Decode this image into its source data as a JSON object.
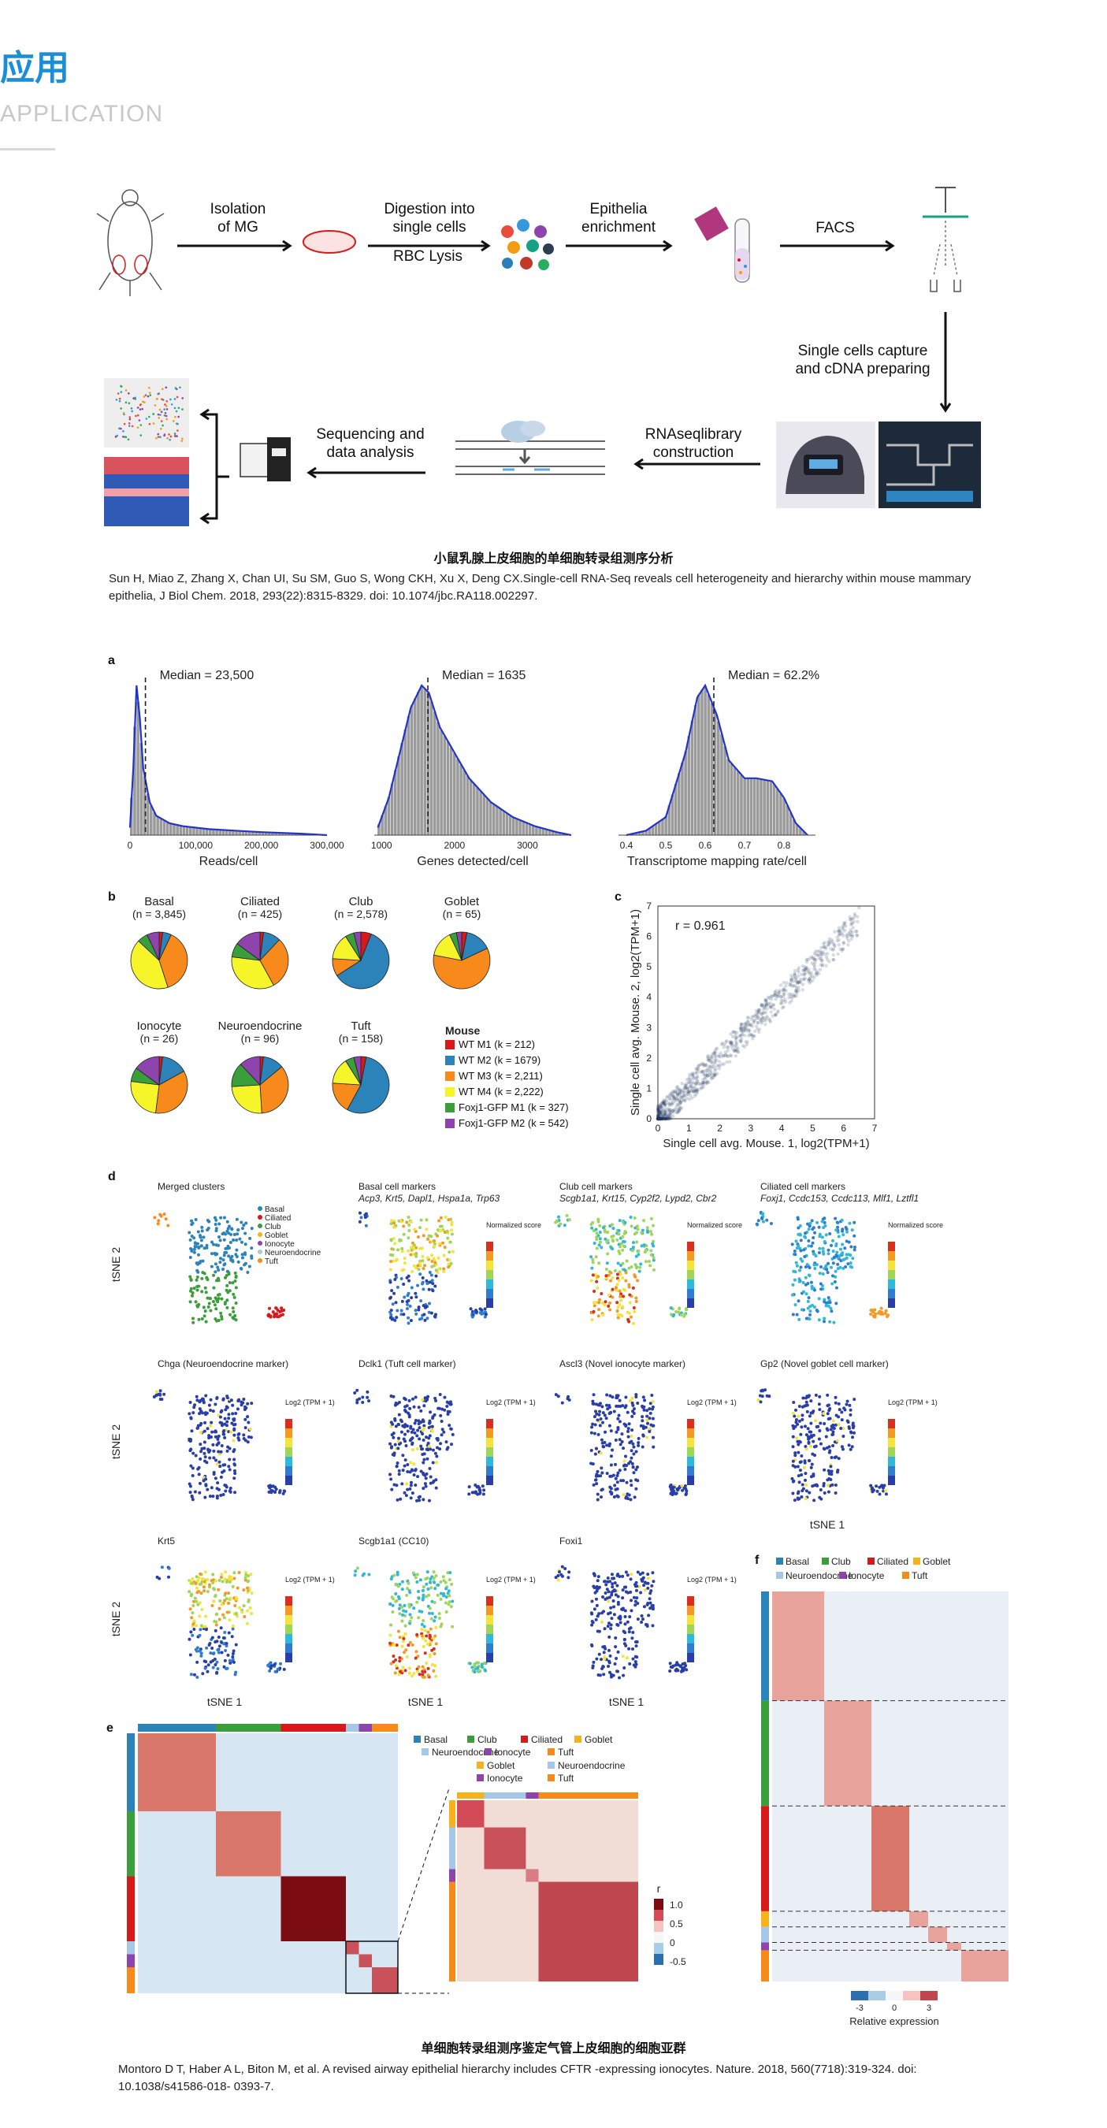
{
  "header": {
    "title_cn": "应用",
    "title_en": "APPLICATION"
  },
  "workflow": {
    "steps": {
      "isolation": "Isolation\nof MG",
      "digestion": "Digestion into\nsingle cells",
      "rbc": "RBC Lysis",
      "epithelia": "Epithelia\nenrichment",
      "facs": "FACS",
      "capture": "Single cells capture\nand cDNA preparing",
      "library": "RNAseqlibrary\nconstruction",
      "sequencing": "Sequencing and\ndata analysis"
    },
    "caption": "小鼠乳腺上皮细胞的单细胞转录组测序分析",
    "reference": "Sun H, Miao Z, Zhang X, Chan UI, Su SM, Guo S, Wong CKH, Xu X, Deng CX.Single-cell RNA-Seq reveals cell heterogeneity and hierarchy within mouse mammary epithelia, J Biol Chem. 2018, 293(22):8315-8329. doi: 10.1074/jbc.RA118.002297."
  },
  "figure": {
    "panel_labels": {
      "a": "a",
      "b": "b",
      "c": "c",
      "d": "d",
      "e": "e",
      "f": "f"
    },
    "mouse_legend": {
      "title": "Mouse",
      "items": [
        {
          "label": "WT M1 (k = 212)",
          "color": "#d7191c"
        },
        {
          "label": "WT M2 (k = 1679)",
          "color": "#2b83ba"
        },
        {
          "label": "WT M3 (k = 2,211)",
          "color": "#f88a1c"
        },
        {
          "label": "WT M4 (k = 2,222)",
          "color": "#f5f52a"
        },
        {
          "label": "Foxj1-GFP M1 (k = 327)",
          "color": "#3a9e3a"
        },
        {
          "label": "Foxj1-GFP M2 (k = 542)",
          "color": "#8e44ad"
        }
      ]
    },
    "pies": [
      {
        "name": "Basal",
        "n": "(n = 3,845)",
        "slices": [
          0.02,
          0.05,
          0.38,
          0.42,
          0.06,
          0.07
        ]
      },
      {
        "name": "Ciliated",
        "n": "(n = 425)",
        "slices": [
          0.02,
          0.1,
          0.3,
          0.35,
          0.08,
          0.15
        ]
      },
      {
        "name": "Club",
        "n": "(n = 2,578)",
        "slices": [
          0.06,
          0.6,
          0.1,
          0.15,
          0.05,
          0.04
        ]
      },
      {
        "name": "Goblet",
        "n": "(n = 65)",
        "slices": [
          0.03,
          0.15,
          0.6,
          0.15,
          0.04,
          0.03
        ]
      },
      {
        "name": "Ionocyte",
        "n": "(n = 26)",
        "slices": [
          0.02,
          0.15,
          0.35,
          0.25,
          0.08,
          0.15
        ]
      },
      {
        "name": "Neuroendocrine",
        "n": "(n = 96)",
        "slices": [
          0.02,
          0.12,
          0.35,
          0.25,
          0.14,
          0.12
        ]
      },
      {
        "name": "Tuft",
        "n": "(n = 158)",
        "slices": [
          0.03,
          0.55,
          0.18,
          0.15,
          0.05,
          0.04
        ]
      }
    ],
    "celltypes": [
      {
        "label": "Basal",
        "color": "#2b83ba"
      },
      {
        "label": "Club",
        "color": "#3a9e3a"
      },
      {
        "label": "Ciliated",
        "color": "#d7191c"
      },
      {
        "label": "Goblet",
        "color": "#f5b21c"
      },
      {
        "label": "Neuroendocrine",
        "color": "#a6c8e8"
      },
      {
        "label": "Ionocyte",
        "color": "#8e44ad"
      },
      {
        "label": "Tuft",
        "color": "#f88a1c"
      }
    ],
    "merged_legend": [
      "Basal",
      "Ciliated",
      "Club",
      "Goblet",
      "Ionocyte",
      "Neuroendocrine",
      "Tuft"
    ],
    "tsne_titles": [
      {
        "line1": "Merged clusters",
        "line2": ""
      },
      {
        "line1": "Basal cell markers",
        "line2": "Acp3, Krt5, Dapl1, Hspa1a, Trp63"
      },
      {
        "line1": "Club cell markers",
        "line2": "Scgb1a1, Krt15, Cyp2f2, Lypd2, Cbr2"
      },
      {
        "line1": "Ciliated cell markers",
        "line2": "Foxj1, Ccdc153, Ccdc113, Mlf1, Lztfl1"
      },
      {
        "line1": "Chga (Neuroendocrine marker)",
        "line2": ""
      },
      {
        "line1": "Dclk1 (Tuft cell marker)",
        "line2": ""
      },
      {
        "line1": "Ascl3 (Novel ionocyte marker)",
        "line2": ""
      },
      {
        "line1": "Gp2 (Novel goblet cell marker)",
        "line2": ""
      },
      {
        "line1": "Krt5",
        "line2": ""
      },
      {
        "line1": "Scgb1a1 (CC10)",
        "line2": ""
      },
      {
        "line1": "Foxi1",
        "line2": ""
      }
    ],
    "tsne_axes": {
      "y": "tSNE 2",
      "x": "tSNE 1",
      "score": "Normalized score",
      "log": "Log2 (TPM + 1)"
    },
    "sub_legend": [
      "Goblet",
      "Neuroendocrine",
      "Ionocyte",
      "Tuft"
    ],
    "r_scale": {
      "title": "r",
      "ticks": [
        "1.0",
        "0.5",
        "0",
        "-0.5"
      ]
    },
    "relative_expression": {
      "label": "Relative expression",
      "ticks": [
        "-3",
        "0",
        "3"
      ]
    },
    "caption": "单细胞转录组测序鉴定气管上皮细胞的细胞亚群",
    "reference": "Montoro D T, Haber A L, Biton M, et al. A revised airway epithelial hierarchy includes CFTR -expressing ionocytes. Nature. 2018, 560(7718):319-324. doi: 10.1038/s41586-018- 0393-7."
  },
  "chart_data": [
    {
      "type": "area",
      "title": "Median = 23,500",
      "xlabel": "Reads/cell",
      "x_ticks": [
        "0",
        "100,000",
        "200,000",
        "300,000"
      ],
      "xlim": [
        0,
        300000
      ],
      "median": 23500,
      "x": [
        0,
        5000,
        10000,
        15000,
        20000,
        30000,
        40000,
        60000,
        80000,
        120000,
        160000,
        200000,
        260000,
        300000
      ],
      "y": [
        0.05,
        0.45,
        1.0,
        0.78,
        0.45,
        0.22,
        0.13,
        0.08,
        0.06,
        0.04,
        0.03,
        0.02,
        0.01,
        0.0
      ]
    },
    {
      "type": "area",
      "title": "Median = 1635",
      "xlabel": "Genes detected/cell",
      "x_ticks": [
        "1000",
        "2000",
        "3000"
      ],
      "xlim": [
        900,
        3600
      ],
      "median": 1635,
      "x": [
        950,
        1100,
        1250,
        1400,
        1550,
        1650,
        1800,
        2000,
        2200,
        2500,
        2800,
        3100,
        3400,
        3600
      ],
      "y": [
        0.05,
        0.25,
        0.55,
        0.85,
        1.0,
        0.95,
        0.72,
        0.55,
        0.38,
        0.22,
        0.12,
        0.06,
        0.02,
        0.0
      ]
    },
    {
      "type": "area",
      "title": "Median = 62.2%",
      "xlabel": "Transcriptome mapping rate/cell",
      "x_ticks": [
        "0.4",
        "0.5",
        "0.6",
        "0.7",
        "0.8"
      ],
      "xlim": [
        0.38,
        0.88
      ],
      "median": 0.622,
      "x": [
        0.4,
        0.45,
        0.5,
        0.55,
        0.58,
        0.6,
        0.63,
        0.66,
        0.7,
        0.73,
        0.77,
        0.8,
        0.83,
        0.86
      ],
      "y": [
        0.0,
        0.03,
        0.12,
        0.55,
        0.92,
        1.0,
        0.8,
        0.5,
        0.38,
        0.38,
        0.36,
        0.25,
        0.08,
        0.0
      ]
    },
    {
      "type": "scatter",
      "annotation": "r = 0.961",
      "xlabel": "Single cell avg. Mouse. 1, log2(TPM+1)",
      "ylabel": "Single cell avg. Mouse. 2, log2(TPM+1)",
      "x_ticks": [
        "0",
        "1",
        "2",
        "3",
        "4",
        "5",
        "6",
        "7"
      ],
      "y_ticks": [
        "0",
        "1",
        "2",
        "3",
        "4",
        "5",
        "6",
        "7"
      ],
      "xlim": [
        0,
        7
      ],
      "ylim": [
        0,
        7
      ]
    }
  ]
}
